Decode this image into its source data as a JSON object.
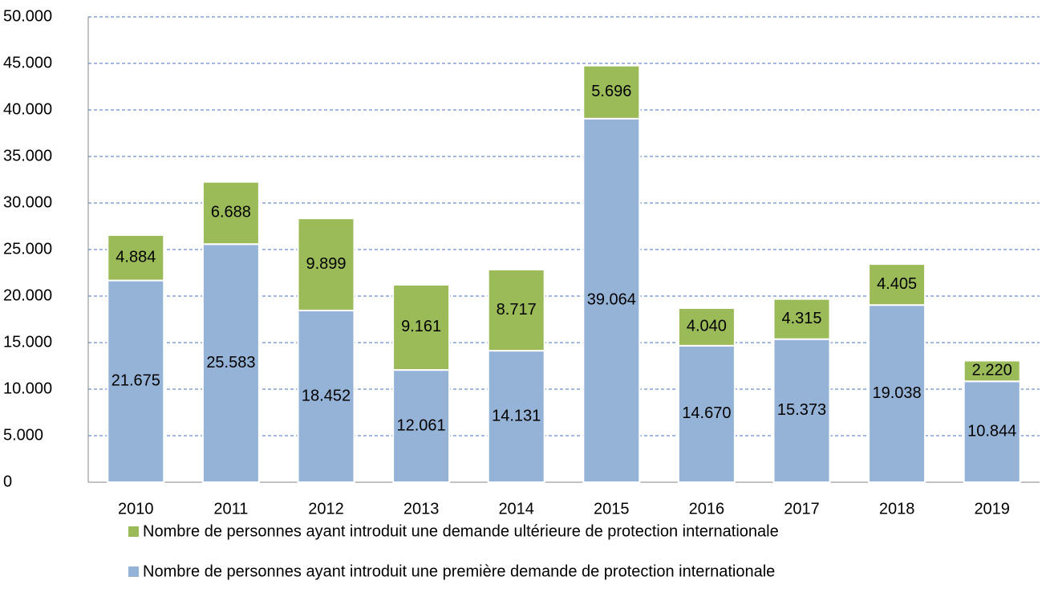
{
  "chart_data": {
    "type": "stacked_bar",
    "categories": [
      "2010",
      "2011",
      "2012",
      "2013",
      "2014",
      "2015",
      "2016",
      "2017",
      "2018",
      "2019"
    ],
    "series": [
      {
        "name": "Nombre de personnes ayant introduit une première demande de protection internationale",
        "color": "#95b3d7",
        "values": [
          21675,
          25583,
          18452,
          12061,
          14131,
          39064,
          14670,
          15373,
          19038,
          10844
        ],
        "value_labels": [
          "21.675",
          "25.583",
          "18.452",
          "12.061",
          "14.131",
          "39.064",
          "14.670",
          "15.373",
          "19.038",
          "10.844"
        ]
      },
      {
        "name": "Nombre de personnes ayant introduit une demande ultérieure de protection internationale",
        "color": "#9bbb59",
        "values": [
          4884,
          6688,
          9899,
          9161,
          8717,
          5696,
          4040,
          4315,
          4405,
          2220
        ],
        "value_labels": [
          "4.884",
          "6.688",
          "9.899",
          "9.161",
          "8.717",
          "5.696",
          "4.040",
          "4.315",
          "4.405",
          "2.220"
        ]
      }
    ],
    "ylim": [
      0,
      50000
    ],
    "yticks": [
      0,
      {
        "value": 5000,
        "label": "5.000"
      },
      {
        "value": 10000,
        "label": "10.000"
      },
      {
        "value": 15000,
        "label": "15.000"
      },
      {
        "value": 20000,
        "label": "20.000"
      },
      {
        "value": 25000,
        "label": "25.000"
      },
      {
        "value": 30000,
        "label": "30.000"
      },
      {
        "value": 35000,
        "label": "35.000"
      },
      {
        "value": 40000,
        "label": "40.000"
      },
      {
        "value": 45000,
        "label": "45.000"
      },
      {
        "value": 50000,
        "label": "50.000"
      }
    ],
    "grid": true,
    "legend": "bottom"
  }
}
